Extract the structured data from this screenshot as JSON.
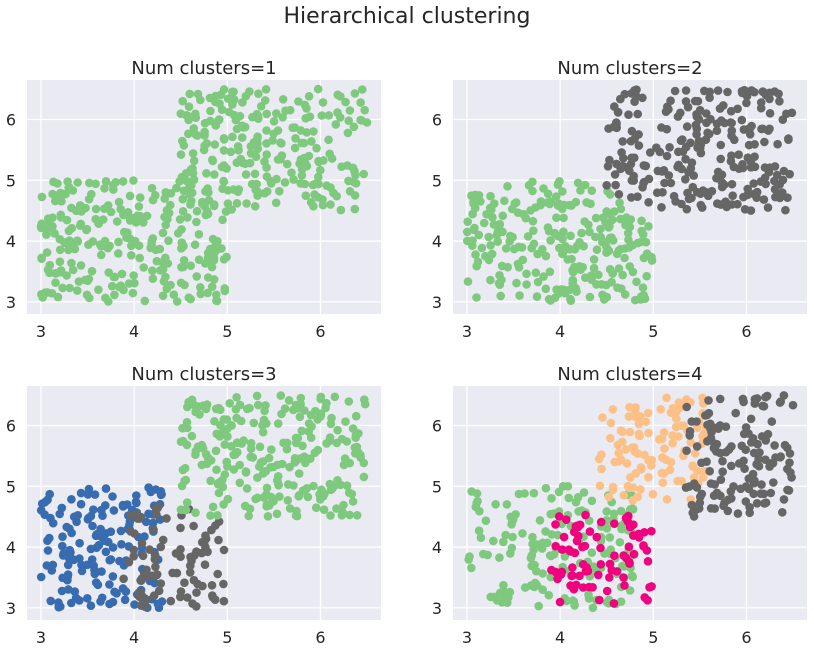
{
  "figure": {
    "title": "Hierarchical clustering"
  },
  "colors": {
    "background": "#eaeaf2",
    "grid": "#ffffff",
    "green": "#7fc97f",
    "gray": "#666666",
    "blue": "#386cb0",
    "peach": "#fdc086",
    "pink": "#f0027f"
  },
  "chart_data": [
    {
      "type": "scatter",
      "title": "Num clusters=1",
      "xlim": [
        2.85,
        6.65
      ],
      "ylim": [
        2.8,
        6.65
      ],
      "xticks": [
        3,
        4,
        5,
        6
      ],
      "yticks": [
        3,
        4,
        5,
        6
      ],
      "grid": true,
      "series": [
        {
          "color": "#7fc97f",
          "regions": [
            [
              3.0,
              5.0,
              3.0,
              5.0
            ],
            [
              4.5,
              6.5,
              4.5,
              6.5
            ]
          ],
          "n": 500
        }
      ]
    },
    {
      "type": "scatter",
      "title": "Num clusters=2",
      "xlim": [
        2.85,
        6.65
      ],
      "ylim": [
        2.8,
        6.65
      ],
      "xticks": [
        3,
        4,
        5,
        6
      ],
      "yticks": [
        3,
        4,
        5,
        6
      ],
      "grid": true,
      "series": [
        {
          "color": "#7fc97f",
          "regions": [
            [
              3.0,
              5.0,
              3.0,
              5.0
            ]
          ],
          "n": 250,
          "clip": "x+y<9.35"
        },
        {
          "color": "#666666",
          "regions": [
            [
              4.5,
              6.5,
              4.5,
              6.5
            ]
          ],
          "n": 250,
          "clip": "x+y>=9.35"
        }
      ]
    },
    {
      "type": "scatter",
      "title": "Num clusters=3",
      "xlim": [
        2.85,
        6.65
      ],
      "ylim": [
        2.8,
        6.65
      ],
      "xticks": [
        3,
        4,
        5,
        6
      ],
      "yticks": [
        3,
        4,
        5,
        6
      ],
      "grid": true,
      "series": [
        {
          "color": "#386cb0",
          "regions": [
            [
              3.0,
              4.3,
              3.0,
              5.0
            ]
          ],
          "n": 160
        },
        {
          "color": "#666666",
          "regions": [
            [
              3.85,
              5.0,
              3.0,
              4.7
            ]
          ],
          "n": 90
        },
        {
          "color": "#7fc97f",
          "regions": [
            [
              4.5,
              6.5,
              4.5,
              6.5
            ]
          ],
          "n": 250
        }
      ]
    },
    {
      "type": "scatter",
      "title": "Num clusters=4",
      "xlim": [
        2.85,
        6.65
      ],
      "ylim": [
        2.8,
        6.65
      ],
      "xticks": [
        3,
        4,
        5,
        6
      ],
      "yticks": [
        3,
        4,
        5,
        6
      ],
      "grid": true,
      "series": [
        {
          "color": "#7fc97f",
          "regions": [
            [
              3.0,
              4.8,
              3.0,
              5.0
            ]
          ],
          "n": 170
        },
        {
          "color": "#f0027f",
          "regions": [
            [
              3.9,
              5.0,
              3.05,
              4.55
            ]
          ],
          "n": 80
        },
        {
          "color": "#fdc086",
          "regions": [
            [
              4.4,
              5.6,
              4.75,
              6.5
            ]
          ],
          "n": 110
        },
        {
          "color": "#666666",
          "regions": [
            [
              5.35,
              6.5,
              4.5,
              6.5
            ]
          ],
          "n": 140
        }
      ]
    }
  ]
}
